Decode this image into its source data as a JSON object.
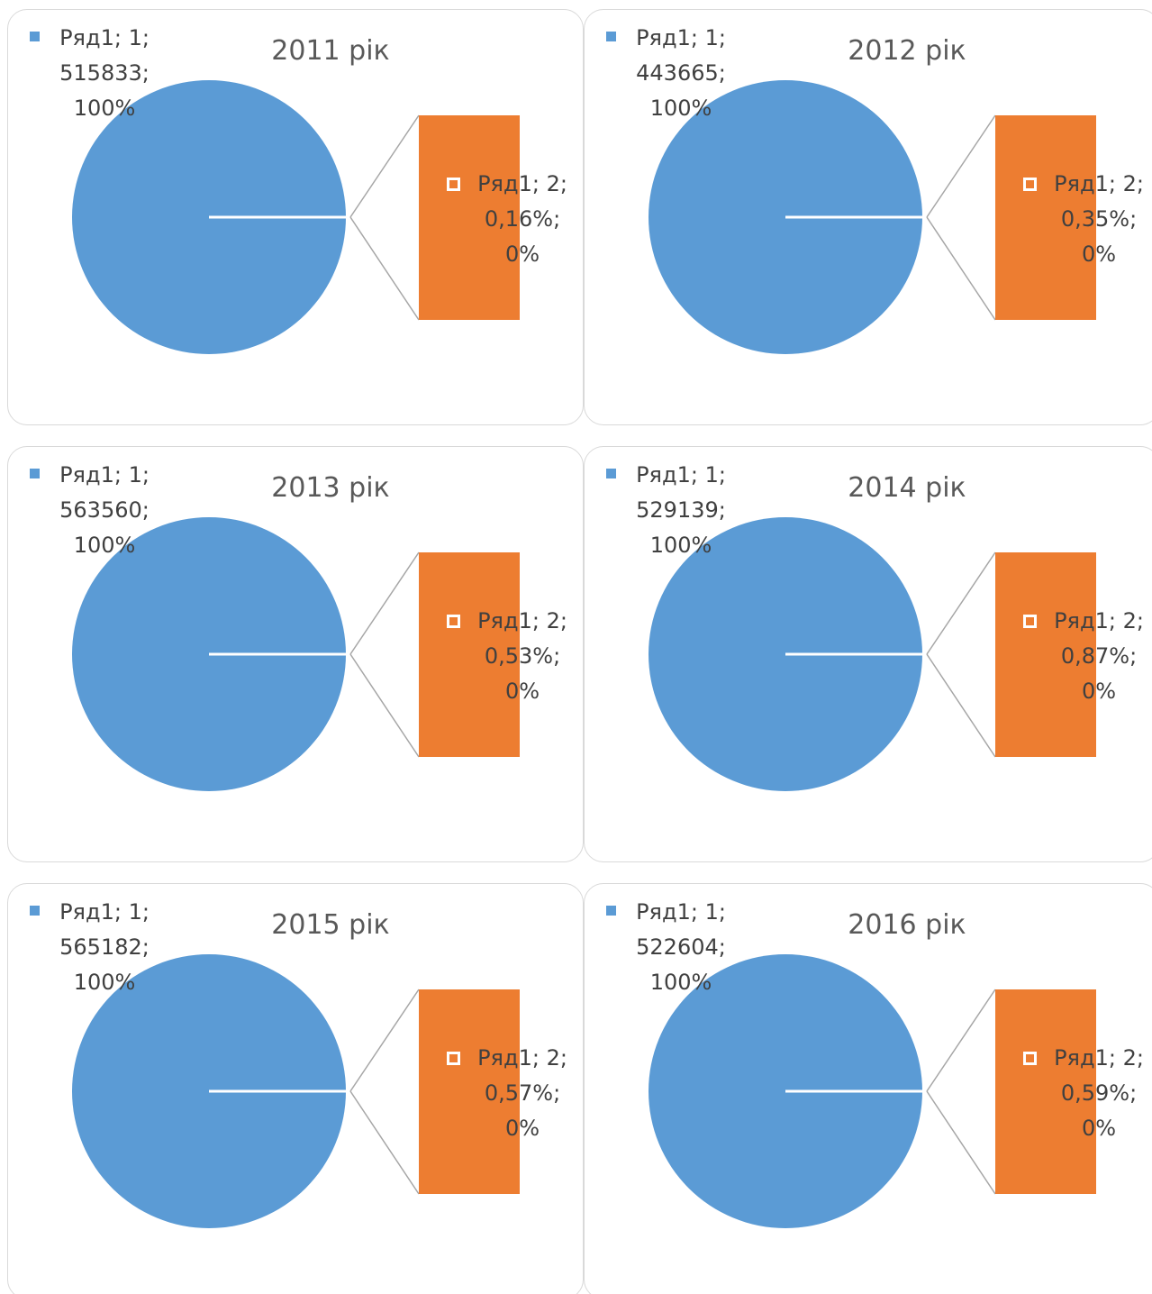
{
  "chart_data": [
    {
      "type": "bar-of-pie",
      "title": "2011 рік",
      "categories": [
        "1",
        "2"
      ],
      "series": [
        {
          "name": "Ряд1",
          "colors": [
            "#5b9bd5",
            "#ed7d31"
          ],
          "values": [
            515833,
            0.16
          ],
          "value_labels": [
            "Ряд1; 1; 515833; 100%",
            "Ряд1; 2; 0,16%; 0%"
          ]
        }
      ]
    },
    {
      "type": "bar-of-pie",
      "title": "2012 рік",
      "categories": [
        "1",
        "2"
      ],
      "series": [
        {
          "name": "Ряд1",
          "colors": [
            "#5b9bd5",
            "#ed7d31"
          ],
          "values": [
            443665,
            0.35
          ],
          "value_labels": [
            "Ряд1; 1; 443665; 100%",
            "Ряд1; 2; 0,35%; 0%"
          ]
        }
      ]
    },
    {
      "type": "bar-of-pie",
      "title": "2013 рік",
      "categories": [
        "1",
        "2"
      ],
      "series": [
        {
          "name": "Ряд1",
          "colors": [
            "#5b9bd5",
            "#ed7d31"
          ],
          "values": [
            563560,
            0.53
          ],
          "value_labels": [
            "Ряд1; 1; 563560; 100%",
            "Ряд1; 2; 0,53%; 0%"
          ]
        }
      ]
    },
    {
      "type": "bar-of-pie",
      "title": "2014 рік",
      "categories": [
        "1",
        "2"
      ],
      "series": [
        {
          "name": "Ряд1",
          "colors": [
            "#5b9bd5",
            "#ed7d31"
          ],
          "values": [
            529139,
            0.87
          ],
          "value_labels": [
            "Ряд1; 1; 529139; 100%",
            "Ряд1; 2; 0,87%; 0%"
          ]
        }
      ]
    },
    {
      "type": "bar-of-pie",
      "title": "2015 рік",
      "categories": [
        "1",
        "2"
      ],
      "series": [
        {
          "name": "Ряд1",
          "colors": [
            "#5b9bd5",
            "#ed7d31"
          ],
          "values": [
            565182,
            0.57
          ],
          "value_labels": [
            "Ряд1; 1; 565182; 100%",
            "Ряд1; 2; 0,57%; 0%"
          ]
        }
      ]
    },
    {
      "type": "bar-of-pie",
      "title": "2016 рік",
      "categories": [
        "1",
        "2"
      ],
      "series": [
        {
          "name": "Ряд1",
          "colors": [
            "#5b9bd5",
            "#ed7d31"
          ],
          "values": [
            522604,
            0.59
          ],
          "value_labels": [
            "Ряд1; 1; 522604; 100%",
            "Ряд1; 2; 0,59%; 0%"
          ]
        }
      ]
    }
  ]
}
